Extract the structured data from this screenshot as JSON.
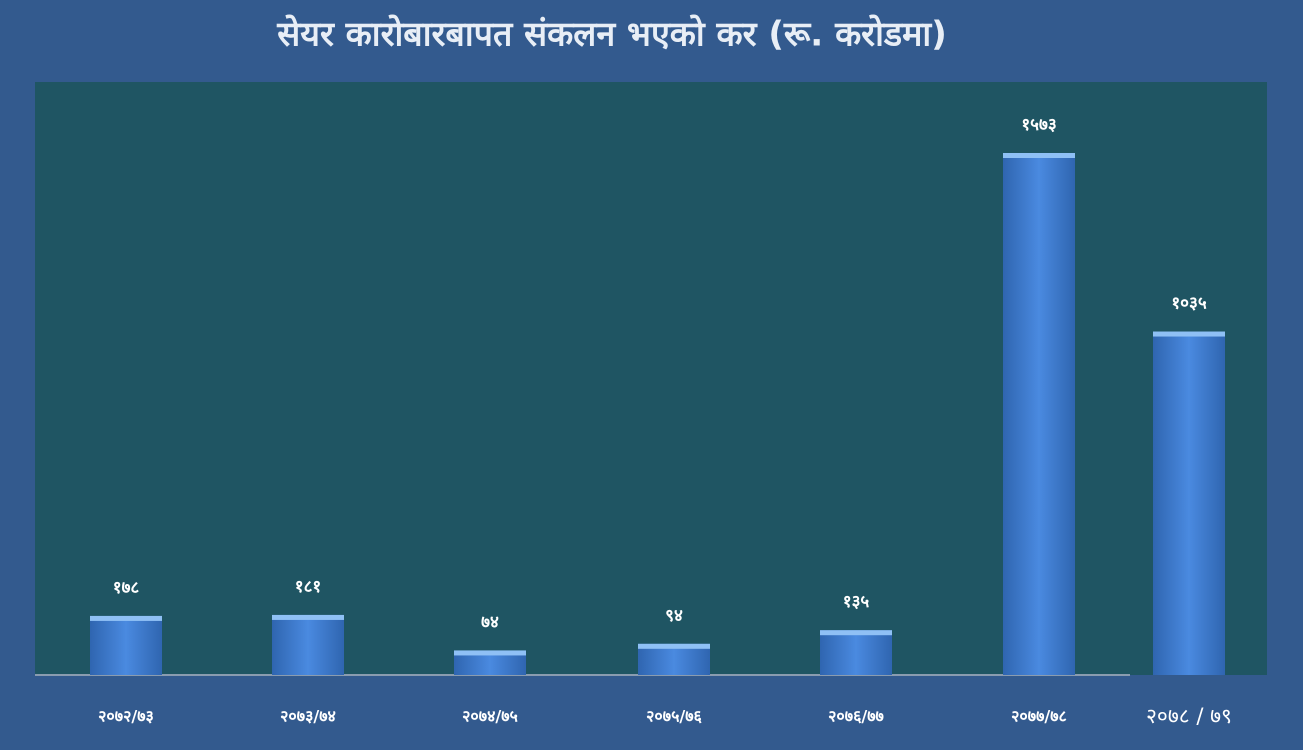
{
  "chart_data": {
    "type": "bar",
    "title": "सेयर कारोबारबापत संकलन भएको कर (रू. करोडमा)",
    "categories": [
      "२०७२/७३",
      "२०७३/७४",
      "२०७४/७५",
      "२०७५/७६",
      "२०७६/७७",
      "२०७७/७८",
      "२०७८ / ७९"
    ],
    "values": [
      178,
      181,
      74,
      94,
      135,
      1573,
      1035
    ],
    "value_labels": [
      "१७८",
      "१८१",
      "७४",
      "९४",
      "१३५",
      "१५७३",
      "१०३५"
    ],
    "color": "#3d7fd6"
  }
}
